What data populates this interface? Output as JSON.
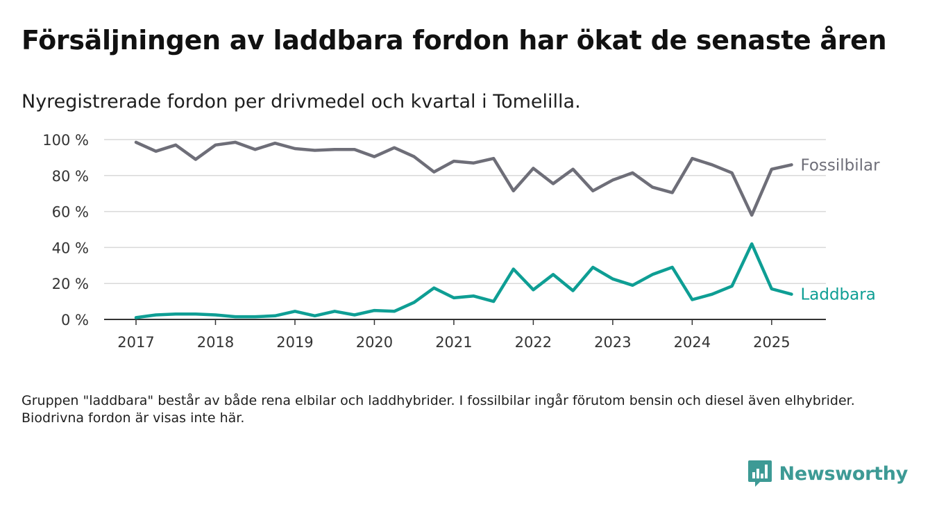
{
  "title": "Försäljningen av laddbara fordon har ökat de senaste åren",
  "subtitle": "Nyregistrerade fordon per drivmedel och kvartal i Tomelilla.",
  "note": "Gruppen \"laddbara\" består av både rena elbilar och laddhybrider. I fossilbilar ingår förutom bensin och diesel även elhybrider. Biodrivna fordon är visas inte här.",
  "brand": {
    "name": "Newsworthy",
    "icon": "bar-chart-logo-icon",
    "color": "#3d9a95"
  },
  "chart_data": {
    "type": "line",
    "x": [
      "2017-Q1",
      "2017-Q2",
      "2017-Q3",
      "2017-Q4",
      "2018-Q1",
      "2018-Q2",
      "2018-Q3",
      "2018-Q4",
      "2019-Q1",
      "2019-Q2",
      "2019-Q3",
      "2019-Q4",
      "2020-Q1",
      "2020-Q2",
      "2020-Q3",
      "2020-Q4",
      "2021-Q1",
      "2021-Q2",
      "2021-Q3",
      "2021-Q4",
      "2022-Q1",
      "2022-Q2",
      "2022-Q3",
      "2022-Q4",
      "2023-Q1",
      "2023-Q2",
      "2023-Q3",
      "2023-Q4",
      "2024-Q1",
      "2024-Q2",
      "2024-Q3",
      "2024-Q4",
      "2025-Q1",
      "2025-Q2"
    ],
    "x_tick_labels": [
      "2017",
      "2018",
      "2019",
      "2020",
      "2021",
      "2022",
      "2023",
      "2024",
      "2025"
    ],
    "y_tick_labels": [
      "0 %",
      "20 %",
      "40 %",
      "60 %",
      "80 %",
      "100 %"
    ],
    "ylim": [
      0,
      100
    ],
    "y_unit": "%",
    "grid": true,
    "legend": "end-of-line labels",
    "series": [
      {
        "name": "Fossilbilar",
        "color": "#6e6e78",
        "values": [
          98.5,
          93.5,
          97,
          89,
          97,
          98.5,
          94.5,
          98,
          95,
          94,
          94.5,
          94.5,
          90.5,
          95.5,
          90.5,
          82,
          88,
          87,
          89.5,
          71.5,
          84,
          75.5,
          83.5,
          71.5,
          77.5,
          81.5,
          73.5,
          70.5,
          89.5,
          86,
          81.5,
          58,
          83.5,
          86
        ]
      },
      {
        "name": "Laddbara",
        "color": "#0e9e94",
        "values": [
          1,
          2.5,
          3,
          3,
          2.5,
          1.5,
          1.5,
          2,
          4.5,
          2,
          4.5,
          2.5,
          5,
          4.5,
          9.5,
          17.5,
          12,
          13,
          10,
          28,
          16.5,
          25,
          16,
          29,
          22.5,
          19,
          25,
          29,
          11,
          14,
          18.5,
          42,
          17,
          14
        ]
      }
    ]
  }
}
